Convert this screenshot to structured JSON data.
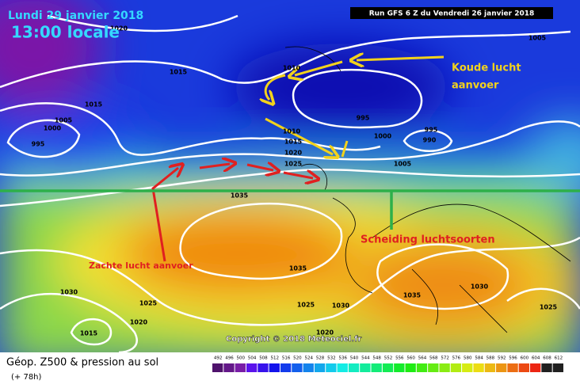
{
  "header": {
    "date": "Lundi 29 janvier 2018",
    "time": "13:00 locale",
    "run": "Run GFS 6 Z du Vendredi 26 janvier 2018"
  },
  "annotations": {
    "cold_line1": "Koude lucht",
    "cold_line2": "aanvoer",
    "warm": "Zachte lucht aanvoer",
    "boundary": "Scheiding luchtsoorten"
  },
  "isobar_labels": [
    1020,
    1015,
    1015,
    1005,
    1000,
    995,
    1010,
    995,
    1000,
    995,
    990,
    1005,
    1010,
    1015,
    1020,
    1025,
    1005,
    1035,
    1035,
    1030,
    1025,
    1020,
    1015,
    1035,
    1025,
    1030,
    1030,
    1025,
    1020
  ],
  "copyright": "Copyright © 2018 Meteociel.fr",
  "footer": {
    "title": "Géop. Z500 & pression au sol",
    "lead": "(+ 78h)"
  },
  "scale": [
    492,
    496,
    500,
    504,
    508,
    512,
    516,
    520,
    524,
    528,
    532,
    536,
    540,
    544,
    548,
    552,
    556,
    560,
    564,
    568,
    572,
    576,
    580,
    584,
    588,
    592,
    596,
    600,
    604,
    608,
    612
  ]
}
